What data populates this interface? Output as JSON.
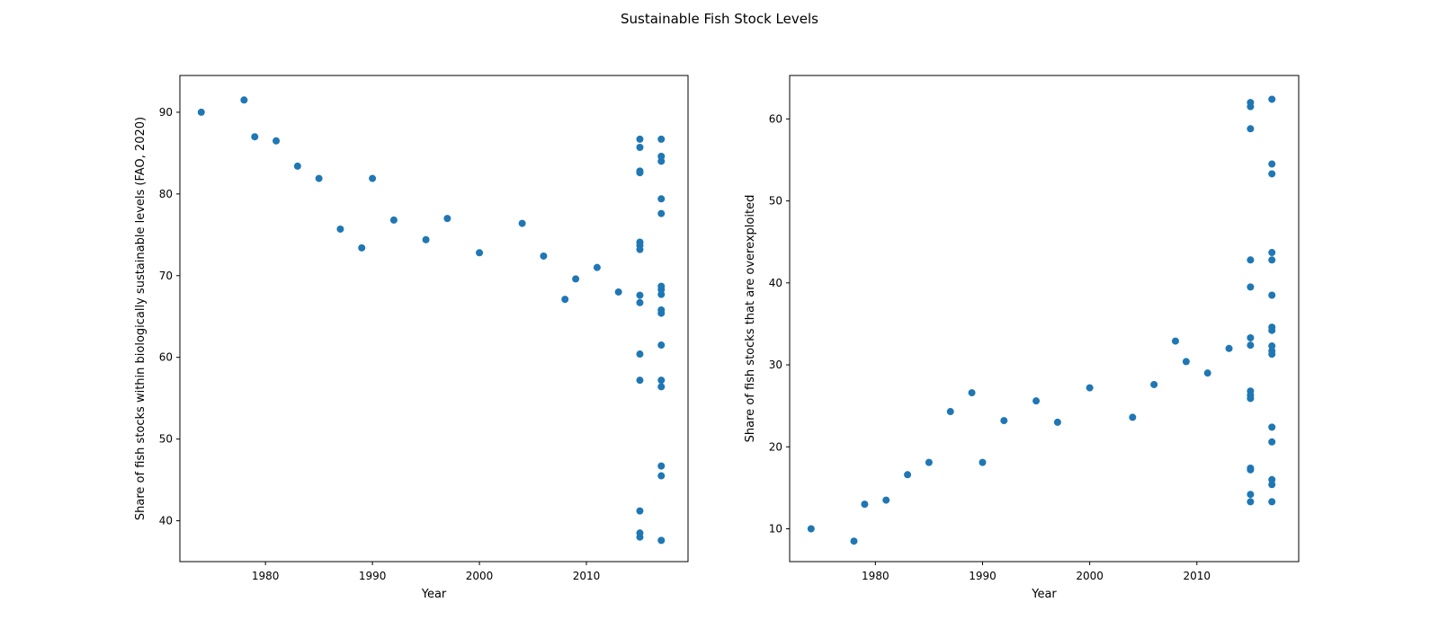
{
  "figure": {
    "title": "Sustainable Fish Stock Levels",
    "marker_color": "#1f77b4"
  },
  "chart_data": [
    {
      "type": "scatter",
      "xlabel": "Year",
      "ylabel": "Share of fish stocks within biologically sustainable levels (FAO, 2020)",
      "xlim": [
        1972,
        2019.5
      ],
      "ylim": [
        35,
        94.5
      ],
      "xticks": [
        1980,
        1990,
        2000,
        2010
      ],
      "yticks": [
        40,
        50,
        60,
        70,
        80,
        90
      ],
      "grid": false,
      "points": [
        [
          1974,
          90.0
        ],
        [
          1978,
          91.5
        ],
        [
          1979,
          87.0
        ],
        [
          1981,
          86.5
        ],
        [
          1983,
          83.4
        ],
        [
          1985,
          81.9
        ],
        [
          1987,
          75.7
        ],
        [
          1989,
          73.4
        ],
        [
          1990,
          81.9
        ],
        [
          1992,
          76.8
        ],
        [
          1995,
          74.4
        ],
        [
          1997,
          77.0
        ],
        [
          2000,
          72.8
        ],
        [
          2004,
          76.4
        ],
        [
          2006,
          72.4
        ],
        [
          2008,
          67.1
        ],
        [
          2009,
          69.6
        ],
        [
          2011,
          71.0
        ],
        [
          2013,
          68.0
        ],
        [
          2015,
          86.7
        ],
        [
          2015,
          85.7
        ],
        [
          2015,
          82.8
        ],
        [
          2015,
          82.6
        ],
        [
          2015,
          74.1
        ],
        [
          2015,
          73.7
        ],
        [
          2015,
          73.2
        ],
        [
          2015,
          67.6
        ],
        [
          2015,
          66.7
        ],
        [
          2015,
          60.4
        ],
        [
          2015,
          57.2
        ],
        [
          2015,
          41.2
        ],
        [
          2015,
          38.5
        ],
        [
          2015,
          38.0
        ],
        [
          2017,
          86.7
        ],
        [
          2017,
          84.6
        ],
        [
          2017,
          84.0
        ],
        [
          2017,
          79.4
        ],
        [
          2017,
          77.6
        ],
        [
          2017,
          68.7
        ],
        [
          2017,
          68.3
        ],
        [
          2017,
          67.7
        ],
        [
          2017,
          65.8
        ],
        [
          2017,
          65.4
        ],
        [
          2017,
          61.5
        ],
        [
          2017,
          57.2
        ],
        [
          2017,
          56.4
        ],
        [
          2017,
          46.7
        ],
        [
          2017,
          45.5
        ],
        [
          2017,
          37.6
        ]
      ]
    },
    {
      "type": "scatter",
      "xlabel": "Year",
      "ylabel": "Share of fish stocks that are overexploited",
      "xlim": [
        1972,
        2019.5
      ],
      "ylim": [
        6,
        65.3
      ],
      "xticks": [
        1980,
        1990,
        2000,
        2010
      ],
      "yticks": [
        10,
        20,
        30,
        40,
        50,
        60
      ],
      "grid": false,
      "points": [
        [
          1974,
          10.0
        ],
        [
          1978,
          8.5
        ],
        [
          1979,
          13.0
        ],
        [
          1981,
          13.5
        ],
        [
          1983,
          16.6
        ],
        [
          1985,
          18.1
        ],
        [
          1987,
          24.3
        ],
        [
          1989,
          26.6
        ],
        [
          1990,
          18.1
        ],
        [
          1992,
          23.2
        ],
        [
          1995,
          25.6
        ],
        [
          1997,
          23.0
        ],
        [
          2000,
          27.2
        ],
        [
          2004,
          23.6
        ],
        [
          2006,
          27.6
        ],
        [
          2008,
          32.9
        ],
        [
          2009,
          30.4
        ],
        [
          2011,
          29.0
        ],
        [
          2013,
          32.0
        ],
        [
          2015,
          62.0
        ],
        [
          2015,
          61.5
        ],
        [
          2015,
          58.8
        ],
        [
          2015,
          42.8
        ],
        [
          2015,
          39.5
        ],
        [
          2015,
          33.3
        ],
        [
          2015,
          32.4
        ],
        [
          2015,
          26.8
        ],
        [
          2015,
          26.3
        ],
        [
          2015,
          25.9
        ],
        [
          2015,
          17.4
        ],
        [
          2015,
          17.2
        ],
        [
          2015,
          14.2
        ],
        [
          2015,
          13.3
        ],
        [
          2017,
          62.4
        ],
        [
          2017,
          54.5
        ],
        [
          2017,
          53.3
        ],
        [
          2017,
          43.7
        ],
        [
          2017,
          42.8
        ],
        [
          2017,
          38.5
        ],
        [
          2017,
          34.6
        ],
        [
          2017,
          34.2
        ],
        [
          2017,
          32.3
        ],
        [
          2017,
          31.7
        ],
        [
          2017,
          31.3
        ],
        [
          2017,
          22.4
        ],
        [
          2017,
          20.6
        ],
        [
          2017,
          16.0
        ],
        [
          2017,
          15.4
        ],
        [
          2017,
          13.3
        ]
      ]
    }
  ]
}
